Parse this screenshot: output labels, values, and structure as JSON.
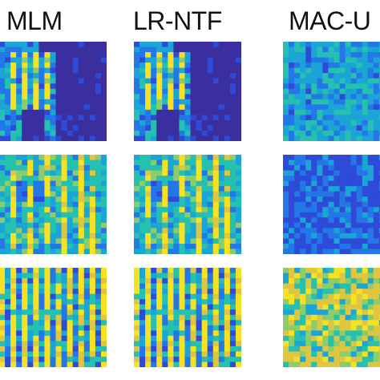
{
  "columns": [
    {
      "title": "MLM"
    },
    {
      "title": "LR-NTF"
    },
    {
      "title": "MAC-U"
    }
  ],
  "colormap": [
    "#3b2fa0",
    "#2d4bd8",
    "#2377e6",
    "#1ba5d6",
    "#25c0b0",
    "#8ccc6a",
    "#e0c640",
    "#f6e222"
  ],
  "panels": [
    {
      "method": "MLM",
      "row": 1,
      "pattern": "structured-stripes-with-dark-block"
    },
    {
      "method": "LR-NTF",
      "row": 1,
      "pattern": "structured-stripes-with-dark-block"
    },
    {
      "method": "MAC-U",
      "row": 1,
      "pattern": "noisy-blue"
    },
    {
      "method": "MLM",
      "row": 2,
      "pattern": "structured-stripes"
    },
    {
      "method": "LR-NTF",
      "row": 2,
      "pattern": "structured-stripes"
    },
    {
      "method": "MAC-U",
      "row": 2,
      "pattern": "noisy-dark-blue"
    },
    {
      "method": "MLM",
      "row": 3,
      "pattern": "dense-stripes"
    },
    {
      "method": "LR-NTF",
      "row": 3,
      "pattern": "dense-stripes"
    },
    {
      "method": "MAC-U",
      "row": 3,
      "pattern": "noisy-yellow-green"
    }
  ]
}
